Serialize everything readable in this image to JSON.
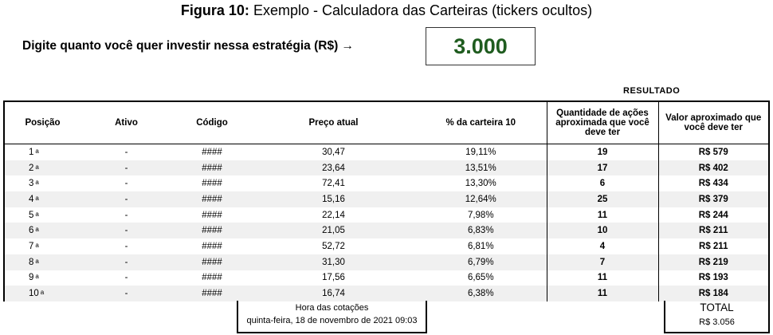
{
  "title": {
    "figure_label": "Figura 10:",
    "text": " Exemplo - Calculadora das Carteiras (tickers ocultos)"
  },
  "prompt": {
    "text": "Digite quanto você quer investir nessa estratégia (R$) →",
    "value": "3.000"
  },
  "resultado_label": "RESULTADO",
  "table": {
    "headers": {
      "posicao": "Posição",
      "ativo": "Ativo",
      "codigo": "Código",
      "preco": "Preço atual",
      "pct": "% da carteira 10",
      "qty": "Quantidade  de ações aproximada que você deve ter",
      "val": "Valor aproximado que você deve ter"
    },
    "rows": [
      {
        "pos": "1",
        "ord": "a",
        "ativo": "-",
        "codigo": "####",
        "preco": "30,47",
        "pct": "19,11%",
        "qty": "19",
        "val": "R$ 579"
      },
      {
        "pos": "2",
        "ord": "a",
        "ativo": "-",
        "codigo": "####",
        "preco": "23,64",
        "pct": "13,51%",
        "qty": "17",
        "val": "R$ 402"
      },
      {
        "pos": "3",
        "ord": "a",
        "ativo": "-",
        "codigo": "####",
        "preco": "72,41",
        "pct": "13,30%",
        "qty": "6",
        "val": "R$ 434"
      },
      {
        "pos": "4",
        "ord": "a",
        "ativo": "-",
        "codigo": "####",
        "preco": "15,16",
        "pct": "12,64%",
        "qty": "25",
        "val": "R$ 379"
      },
      {
        "pos": "5",
        "ord": "a",
        "ativo": "-",
        "codigo": "####",
        "preco": "22,14",
        "pct": "7,98%",
        "qty": "11",
        "val": "R$ 244"
      },
      {
        "pos": "6",
        "ord": "a",
        "ativo": "-",
        "codigo": "####",
        "preco": "21,05",
        "pct": "6,83%",
        "qty": "10",
        "val": "R$ 211"
      },
      {
        "pos": "7",
        "ord": "a",
        "ativo": "-",
        "codigo": "####",
        "preco": "52,72",
        "pct": "6,81%",
        "qty": "4",
        "val": "R$ 211"
      },
      {
        "pos": "8",
        "ord": "a",
        "ativo": "-",
        "codigo": "####",
        "preco": "31,30",
        "pct": "6,79%",
        "qty": "7",
        "val": "R$ 219"
      },
      {
        "pos": "9",
        "ord": "a",
        "ativo": "-",
        "codigo": "####",
        "preco": "17,56",
        "pct": "6,65%",
        "qty": "11",
        "val": "R$ 193"
      },
      {
        "pos": "10",
        "ord": "a",
        "ativo": "-",
        "codigo": "####",
        "preco": "16,74",
        "pct": "6,38%",
        "qty": "11",
        "val": "R$ 184"
      }
    ]
  },
  "hora": {
    "label": "Hora das cotações",
    "value": "quinta-feira, 18 de novembro de 2021 09:03"
  },
  "total": {
    "label": "TOTAL",
    "value": "R$ 3.056"
  },
  "colors": {
    "invest_value": "#1f5c1f",
    "row_alt": "#f0f0f0"
  }
}
